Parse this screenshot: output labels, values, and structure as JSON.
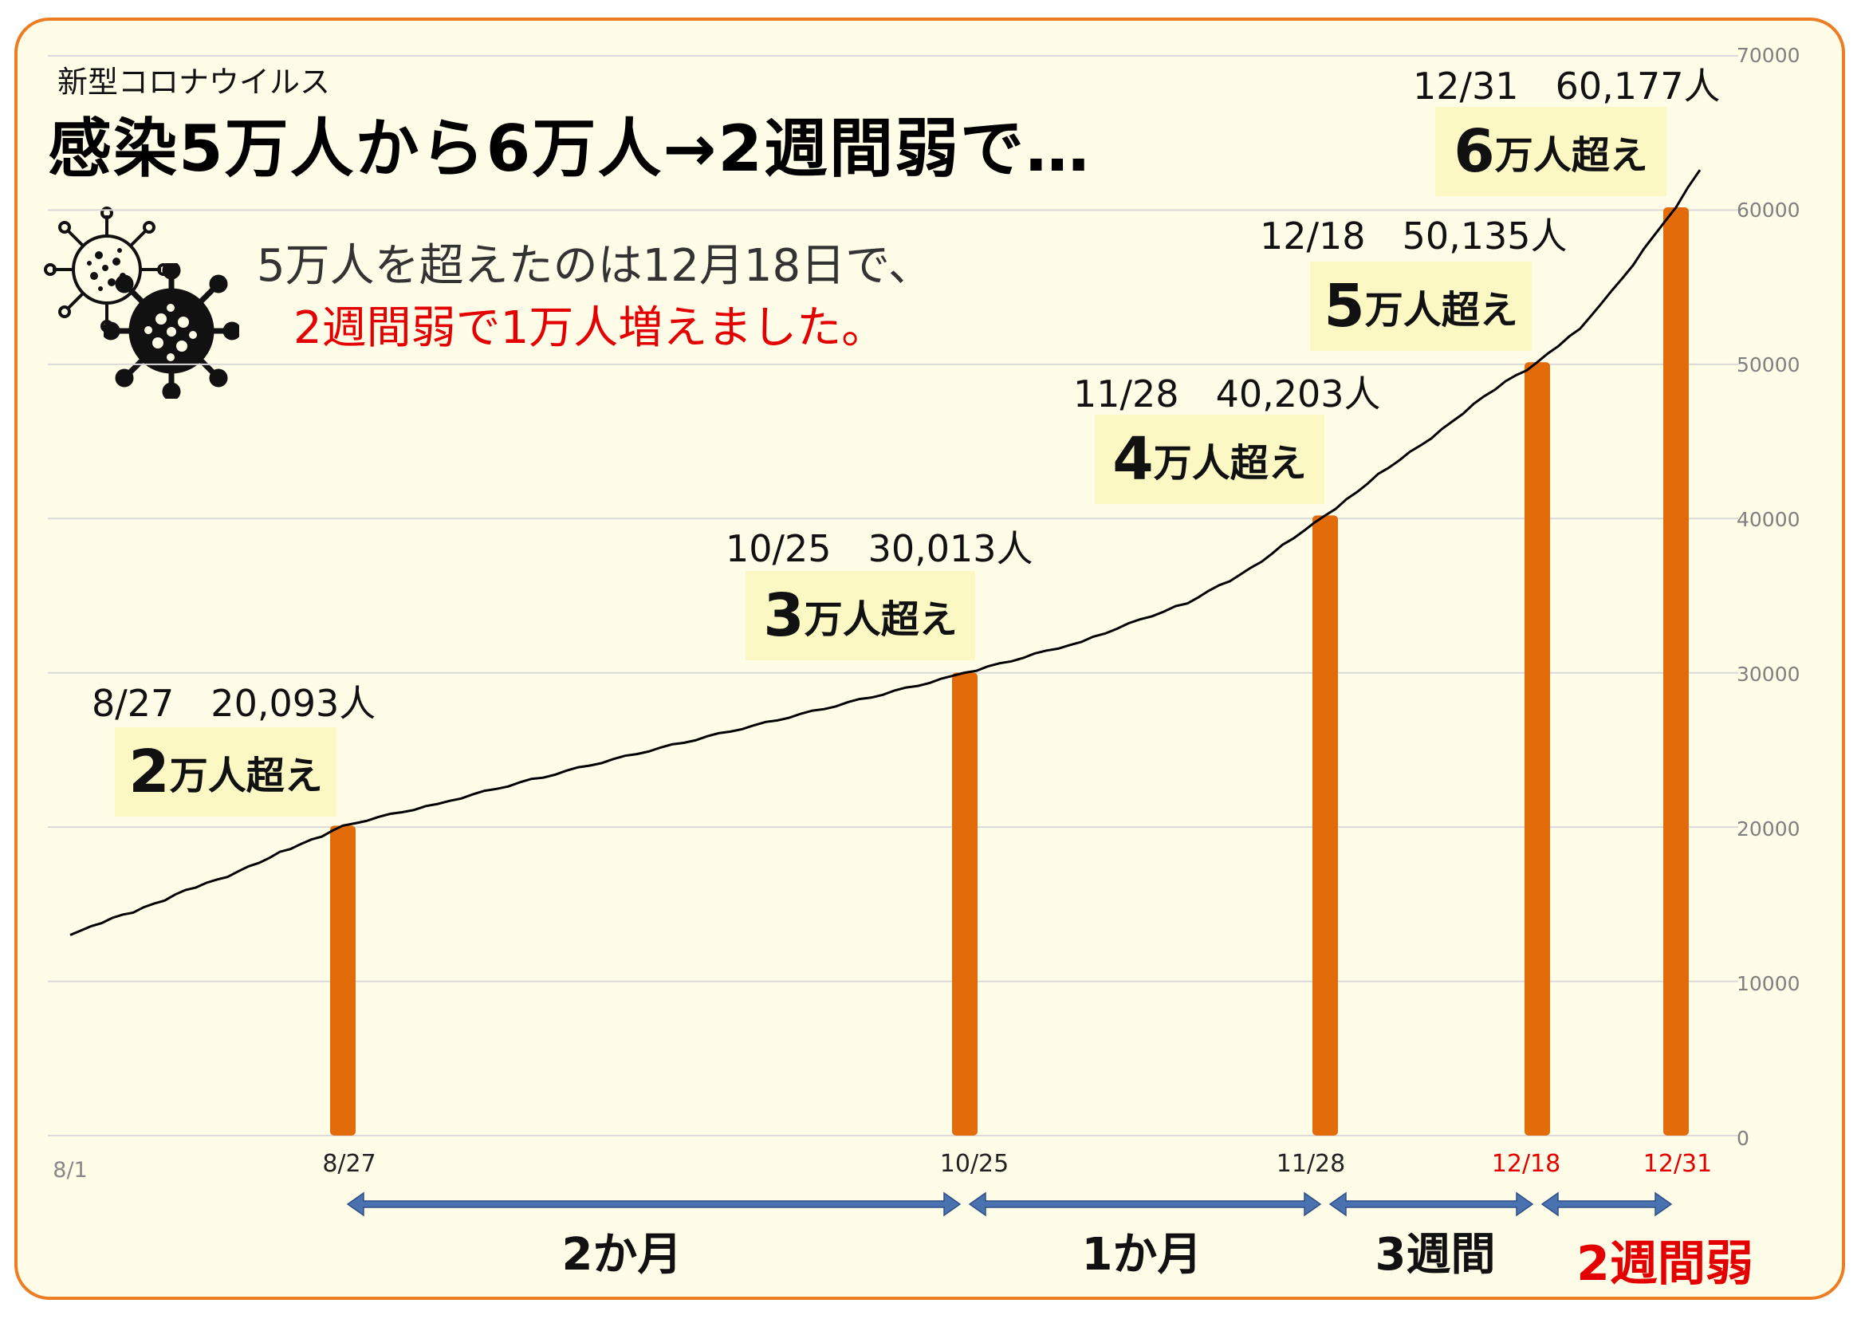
{
  "header": {
    "subtitle": "新型コロナウイルス",
    "title": "感染5万人から6万人→2週間弱で…"
  },
  "note": {
    "line1": "5万人を超えたのは12月18日で、",
    "line2": "2週間弱で1万人増えました。"
  },
  "milestones": [
    {
      "line": "8/27　20,093人",
      "num": "2",
      "suffix": "万人超え"
    },
    {
      "line": "10/25　30,013人",
      "num": "3",
      "suffix": "万人超え"
    },
    {
      "line": "11/28　40,203人",
      "num": "4",
      "suffix": "万人超え"
    },
    {
      "line": "12/18　50,135人",
      "num": "5",
      "suffix": "万人超え"
    },
    {
      "line": "12/31　60,177人",
      "num": "6",
      "suffix": "万人超え"
    }
  ],
  "spans": [
    {
      "label": "2か月"
    },
    {
      "label": "1か月"
    },
    {
      "label": "3週間"
    },
    {
      "label": "2週間弱"
    }
  ],
  "colors": {
    "bar": "#e36c0a",
    "line": "#000000",
    "arrow": "#4a72b0",
    "highlight": "#e40000",
    "frame": "#ec7d22"
  },
  "icons": [
    "virus-outline-icon",
    "virus-solid-icon"
  ],
  "chart_data": {
    "type": "bar+line",
    "title": "感染5万人から6万人→2週間弱で…",
    "ylim": [
      0,
      70000
    ],
    "yticks": [
      0,
      10000,
      20000,
      30000,
      40000,
      50000,
      60000,
      70000
    ],
    "y_axis_side": "right",
    "grid": true,
    "x_start_label": "8/1",
    "x_end": "12/31",
    "bars": {
      "categories": [
        "8/27",
        "10/25",
        "11/28",
        "12/18",
        "12/31"
      ],
      "dates": [
        "08-27",
        "10-25",
        "11-28",
        "12-18",
        "12-31"
      ],
      "values": [
        20093,
        30013,
        40203,
        50135,
        60177
      ],
      "red_labels": [
        "12/18",
        "12/31"
      ]
    },
    "line": {
      "name": "",
      "points": [
        [
          "08-01",
          13000
        ],
        [
          "08-08",
          14800
        ],
        [
          "08-15",
          16600
        ],
        [
          "08-20",
          18000
        ],
        [
          "08-27",
          20093
        ],
        [
          "09-05",
          21500
        ],
        [
          "09-15",
          23200
        ],
        [
          "09-25",
          24900
        ],
        [
          "10-05",
          26600
        ],
        [
          "10-15",
          28300
        ],
        [
          "10-25",
          30013
        ],
        [
          "11-05",
          32000
        ],
        [
          "11-15",
          34500
        ],
        [
          "11-22",
          37200
        ],
        [
          "11-28",
          40203
        ],
        [
          "12-04",
          43300
        ],
        [
          "12-10",
          46300
        ],
        [
          "12-15",
          48900
        ],
        [
          "12-18",
          50135
        ],
        [
          "12-22",
          52300
        ],
        [
          "12-26",
          55600
        ],
        [
          "12-29",
          58400
        ],
        [
          "12-31",
          60177
        ],
        [
          "01-01",
          62600
        ]
      ]
    }
  }
}
